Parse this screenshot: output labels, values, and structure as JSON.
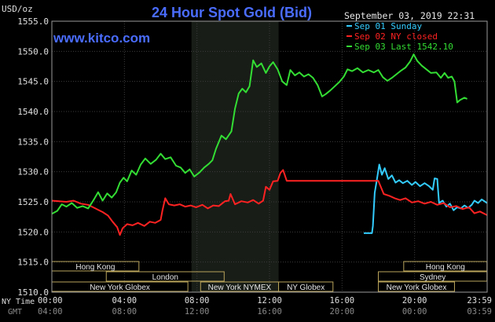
{
  "chart_data": {
    "type": "line",
    "title": "24 Hour Spot Gold (Bid)",
    "watermark": "www.kitco.com",
    "timestamp": "September 03, 2019 22:31",
    "y_unit_label": "USD/oz",
    "ylim": [
      1510,
      1555
    ],
    "y_ticks": [
      "1510.0",
      "1515.0",
      "1520.0",
      "1525.0",
      "1530.0",
      "1535.0",
      "1540.0",
      "1545.0",
      "1550.0",
      "1555.0"
    ],
    "x_range_hours": [
      0,
      24
    ],
    "x_ticks_ny": [
      "00:00",
      "04:00",
      "08:00",
      "12:00",
      "16:00",
      "20:00",
      "23:59"
    ],
    "x_ticks_gmt": [
      "04:00",
      "08:00",
      "12:00",
      "16:00",
      "20:00",
      "00:00",
      "03:59"
    ],
    "x_axis_label_top": "NY Time",
    "x_axis_label_bottom": "GMT",
    "grid": true,
    "legend_position": "top-right",
    "highlight_band_hours": [
      7.7,
      12.5
    ],
    "sessions": [
      {
        "label": "Hong Kong",
        "start": 0,
        "end": 4.8,
        "row": 0
      },
      {
        "label": "London",
        "start": 3.0,
        "end": 9.5,
        "row": 1
      },
      {
        "label": "New York Globex",
        "start": 0,
        "end": 7.5,
        "row": 2
      },
      {
        "label": "New York NYMEX",
        "start": 8.2,
        "end": 12.5,
        "row": 2
      },
      {
        "label": "NY Globex",
        "start": 12.5,
        "end": 15.5,
        "row": 2
      },
      {
        "label": "Hong Kong",
        "start": 19.4,
        "end": 23.99,
        "row": 0
      },
      {
        "label": "Sydney",
        "start": 18.0,
        "end": 23.99,
        "row": 1
      },
      {
        "label": "New York Globex",
        "start": 18.0,
        "end": 22.2,
        "row": 2
      }
    ],
    "series": [
      {
        "name": "Sep 01 Sunday",
        "color": "#33ccff",
        "points": [
          [
            17.2,
            1519.8
          ],
          [
            17.65,
            1519.8
          ],
          [
            17.7,
            1521.0
          ],
          [
            17.8,
            1526.5
          ],
          [
            17.9,
            1528.3
          ],
          [
            18.05,
            1531.2
          ],
          [
            18.2,
            1529.5
          ],
          [
            18.35,
            1530.6
          ],
          [
            18.55,
            1528.8
          ],
          [
            18.75,
            1529.4
          ],
          [
            18.95,
            1528.2
          ],
          [
            19.15,
            1528.6
          ],
          [
            19.35,
            1528.1
          ],
          [
            19.6,
            1528.5
          ],
          [
            19.85,
            1527.8
          ],
          [
            20.05,
            1528.3
          ],
          [
            20.3,
            1527.6
          ],
          [
            20.55,
            1528.1
          ],
          [
            20.8,
            1527.6
          ],
          [
            21.0,
            1527.0
          ],
          [
            21.1,
            1528.9
          ],
          [
            21.25,
            1528.8
          ],
          [
            21.35,
            1524.8
          ],
          [
            21.55,
            1525.2
          ],
          [
            21.75,
            1524.2
          ],
          [
            21.95,
            1524.7
          ],
          [
            22.15,
            1523.6
          ],
          [
            22.35,
            1524.1
          ],
          [
            22.55,
            1523.9
          ],
          [
            22.75,
            1524.4
          ],
          [
            22.95,
            1524.0
          ],
          [
            23.15,
            1524.5
          ],
          [
            23.3,
            1525.2
          ],
          [
            23.5,
            1524.8
          ],
          [
            23.7,
            1525.4
          ],
          [
            23.9,
            1525.0
          ],
          [
            23.99,
            1524.8
          ]
        ]
      },
      {
        "name": "Sep 02 NY closed",
        "color": "#ff2222",
        "points": [
          [
            0,
            1525.2
          ],
          [
            0.4,
            1525.1
          ],
          [
            0.8,
            1525.0
          ],
          [
            1.2,
            1525.2
          ],
          [
            1.6,
            1524.7
          ],
          [
            2.0,
            1524.5
          ],
          [
            2.4,
            1523.9
          ],
          [
            2.8,
            1523.3
          ],
          [
            3.1,
            1522.7
          ],
          [
            3.35,
            1521.7
          ],
          [
            3.6,
            1520.8
          ],
          [
            3.75,
            1519.5
          ],
          [
            3.9,
            1520.6
          ],
          [
            4.15,
            1521.3
          ],
          [
            4.45,
            1521.1
          ],
          [
            4.75,
            1521.5
          ],
          [
            5.1,
            1521.0
          ],
          [
            5.4,
            1521.7
          ],
          [
            5.7,
            1521.5
          ],
          [
            6.0,
            1522.0
          ],
          [
            6.1,
            1523.6
          ],
          [
            6.25,
            1525.6
          ],
          [
            6.45,
            1524.6
          ],
          [
            6.75,
            1524.4
          ],
          [
            7.05,
            1524.6
          ],
          [
            7.35,
            1524.2
          ],
          [
            7.65,
            1524.4
          ],
          [
            7.95,
            1524.1
          ],
          [
            8.3,
            1524.5
          ],
          [
            8.6,
            1523.9
          ],
          [
            8.9,
            1524.4
          ],
          [
            9.2,
            1524.3
          ],
          [
            9.55,
            1525.1
          ],
          [
            9.75,
            1525.2
          ],
          [
            9.85,
            1526.3
          ],
          [
            10.1,
            1524.6
          ],
          [
            10.45,
            1525.1
          ],
          [
            10.8,
            1524.9
          ],
          [
            11.1,
            1525.3
          ],
          [
            11.4,
            1524.7
          ],
          [
            11.65,
            1525.2
          ],
          [
            11.8,
            1527.5
          ],
          [
            12.0,
            1527.0
          ],
          [
            12.2,
            1528.4
          ],
          [
            12.45,
            1528.5
          ],
          [
            12.6,
            1529.8
          ],
          [
            12.75,
            1530.3
          ],
          [
            12.95,
            1528.5
          ],
          [
            13.2,
            1528.5
          ],
          [
            14.5,
            1528.5
          ],
          [
            16.0,
            1528.5
          ],
          [
            17.5,
            1528.5
          ],
          [
            18.0,
            1528.5
          ],
          [
            18.3,
            1526.3
          ],
          [
            18.6,
            1526.0
          ],
          [
            18.9,
            1525.6
          ],
          [
            19.2,
            1525.3
          ],
          [
            19.5,
            1525.6
          ],
          [
            19.85,
            1524.9
          ],
          [
            20.2,
            1525.1
          ],
          [
            20.55,
            1524.7
          ],
          [
            20.9,
            1525.0
          ],
          [
            21.25,
            1524.5
          ],
          [
            21.6,
            1524.8
          ],
          [
            21.95,
            1524.1
          ],
          [
            22.3,
            1524.3
          ],
          [
            22.65,
            1523.8
          ],
          [
            23.0,
            1524.1
          ],
          [
            23.3,
            1523.1
          ],
          [
            23.6,
            1523.4
          ],
          [
            23.99,
            1522.8
          ]
        ]
      },
      {
        "name": "Sep 03 Last 1542.10",
        "color": "#33dd33",
        "points": [
          [
            0,
            1523.0
          ],
          [
            0.3,
            1523.5
          ],
          [
            0.55,
            1524.6
          ],
          [
            0.8,
            1524.2
          ],
          [
            1.1,
            1524.8
          ],
          [
            1.4,
            1524.0
          ],
          [
            1.7,
            1524.3
          ],
          [
            2.0,
            1523.9
          ],
          [
            2.3,
            1525.3
          ],
          [
            2.55,
            1526.6
          ],
          [
            2.8,
            1525.2
          ],
          [
            3.05,
            1526.4
          ],
          [
            3.3,
            1525.7
          ],
          [
            3.55,
            1526.6
          ],
          [
            3.75,
            1528.2
          ],
          [
            3.95,
            1529.0
          ],
          [
            4.15,
            1528.4
          ],
          [
            4.4,
            1530.2
          ],
          [
            4.65,
            1529.5
          ],
          [
            4.9,
            1531.2
          ],
          [
            5.15,
            1532.2
          ],
          [
            5.45,
            1531.3
          ],
          [
            5.75,
            1532.0
          ],
          [
            6.0,
            1533.0
          ],
          [
            6.25,
            1532.1
          ],
          [
            6.55,
            1532.4
          ],
          [
            6.85,
            1531.0
          ],
          [
            7.1,
            1530.7
          ],
          [
            7.35,
            1529.8
          ],
          [
            7.6,
            1530.4
          ],
          [
            7.85,
            1529.2
          ],
          [
            8.15,
            1529.9
          ],
          [
            8.4,
            1530.7
          ],
          [
            8.65,
            1531.3
          ],
          [
            8.85,
            1531.9
          ],
          [
            9.05,
            1533.8
          ],
          [
            9.35,
            1536.0
          ],
          [
            9.6,
            1535.4
          ],
          [
            9.9,
            1536.7
          ],
          [
            10.1,
            1540.5
          ],
          [
            10.3,
            1543.0
          ],
          [
            10.5,
            1543.8
          ],
          [
            10.7,
            1543.2
          ],
          [
            10.9,
            1544.2
          ],
          [
            11.1,
            1548.5
          ],
          [
            11.3,
            1547.4
          ],
          [
            11.55,
            1548.0
          ],
          [
            11.8,
            1546.4
          ],
          [
            12.0,
            1547.5
          ],
          [
            12.2,
            1548.2
          ],
          [
            12.45,
            1547.0
          ],
          [
            12.7,
            1545.0
          ],
          [
            12.95,
            1544.4
          ],
          [
            13.15,
            1546.9
          ],
          [
            13.4,
            1546.0
          ],
          [
            13.65,
            1546.5
          ],
          [
            13.9,
            1545.8
          ],
          [
            14.15,
            1546.2
          ],
          [
            14.4,
            1545.6
          ],
          [
            14.65,
            1544.4
          ],
          [
            14.9,
            1542.5
          ],
          [
            15.1,
            1542.9
          ],
          [
            15.35,
            1543.5
          ],
          [
            15.6,
            1544.2
          ],
          [
            15.85,
            1544.9
          ],
          [
            16.1,
            1545.8
          ],
          [
            16.3,
            1547.0
          ],
          [
            16.55,
            1546.7
          ],
          [
            16.85,
            1547.2
          ],
          [
            17.15,
            1546.5
          ],
          [
            17.45,
            1546.9
          ],
          [
            17.75,
            1546.5
          ],
          [
            18.0,
            1546.9
          ],
          [
            18.25,
            1545.7
          ],
          [
            18.5,
            1545.1
          ],
          [
            18.75,
            1545.6
          ],
          [
            19.0,
            1546.2
          ],
          [
            19.25,
            1546.8
          ],
          [
            19.5,
            1547.3
          ],
          [
            19.75,
            1548.3
          ],
          [
            19.95,
            1549.5
          ],
          [
            20.15,
            1548.4
          ],
          [
            20.4,
            1547.6
          ],
          [
            20.65,
            1547.0
          ],
          [
            20.9,
            1546.4
          ],
          [
            21.2,
            1546.5
          ],
          [
            21.45,
            1545.6
          ],
          [
            21.65,
            1546.4
          ],
          [
            21.85,
            1545.6
          ],
          [
            22.05,
            1545.8
          ],
          [
            22.2,
            1545.0
          ],
          [
            22.35,
            1541.5
          ],
          [
            22.5,
            1541.9
          ],
          [
            22.75,
            1542.3
          ],
          [
            22.9,
            1542.1
          ]
        ]
      }
    ]
  }
}
